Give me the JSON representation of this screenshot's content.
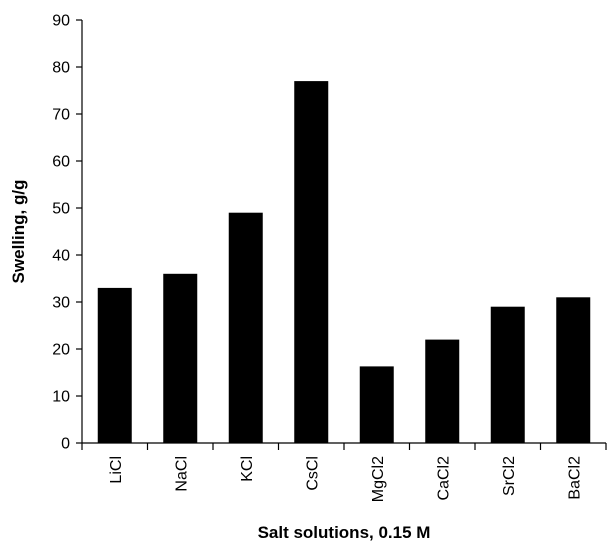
{
  "chart_data": {
    "type": "bar",
    "title": "",
    "xlabel": "Salt solutions, 0.15 M",
    "ylabel": "Swelling, g/g",
    "categories": [
      "LiCl",
      "NaCl",
      "KCl",
      "CsCl",
      "MgCl2",
      "CaCl2",
      "SrCl2",
      "BaCl2"
    ],
    "values": [
      33,
      36,
      49,
      77,
      16.3,
      22,
      29,
      31
    ],
    "ylim": [
      0,
      90
    ],
    "yticks": [
      0,
      10,
      20,
      30,
      40,
      50,
      60,
      70,
      80,
      90
    ],
    "grid": false,
    "legend": "none",
    "bar_color": "#000000"
  }
}
